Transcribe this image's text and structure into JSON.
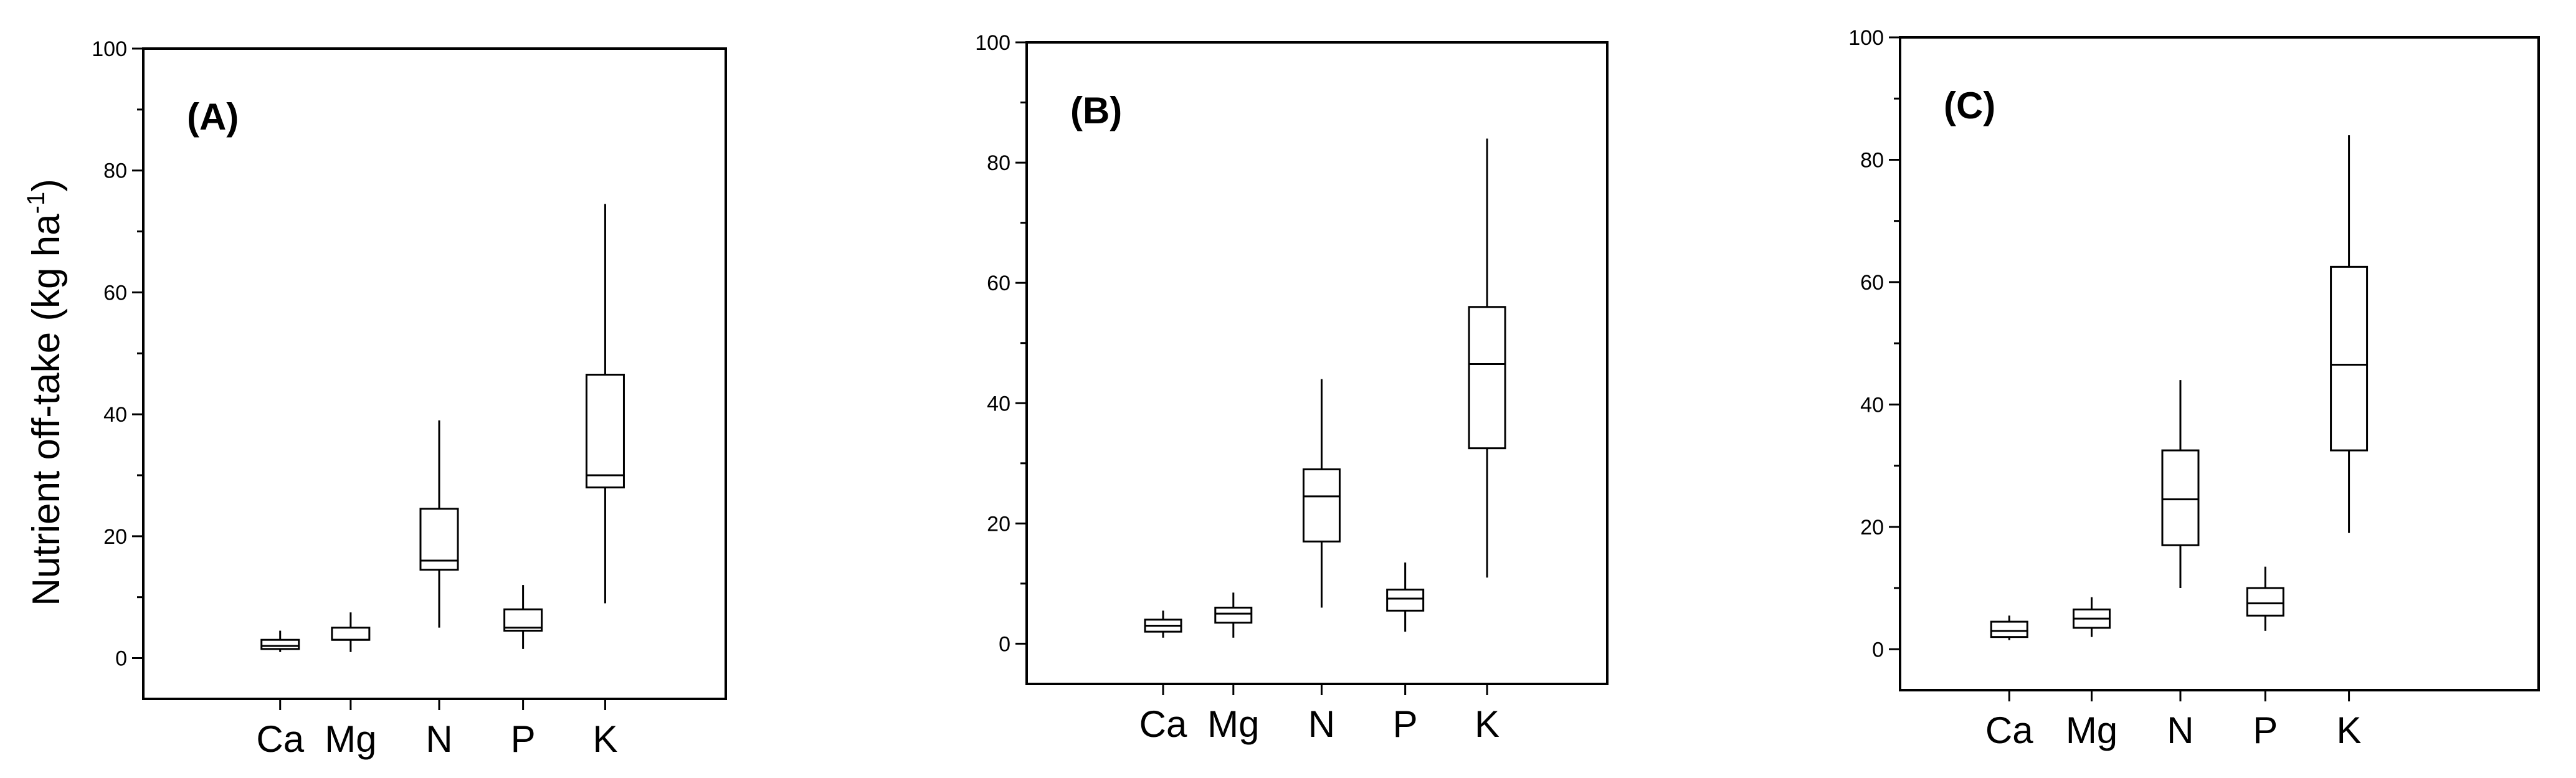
{
  "chart_data": [
    {
      "type": "box",
      "panel_label": "(A)",
      "ylabel": "Nutrient off-take (kg ha",
      "ylabel_sup": "-1",
      "ylabel_close": ")",
      "ylim": [
        0,
        100
      ],
      "yticks": [
        0,
        20,
        40,
        60,
        80,
        100
      ],
      "categories": [
        "Ca",
        "Mg",
        "N",
        "P",
        "K"
      ],
      "boxes": [
        {
          "category": "Ca",
          "min": 1,
          "q1": 1.5,
          "median": 2,
          "q3": 3,
          "max": 4.5
        },
        {
          "category": "Mg",
          "min": 1,
          "q1": 3,
          "median": 3,
          "q3": 5,
          "max": 7.5
        },
        {
          "category": "N",
          "min": 5,
          "q1": 14.5,
          "median": 16,
          "q3": 24.5,
          "max": 39
        },
        {
          "category": "P",
          "min": 1.5,
          "q1": 4.5,
          "median": 5,
          "q3": 8,
          "max": 12
        },
        {
          "category": "K",
          "min": 9,
          "q1": 28,
          "median": 30,
          "q3": 46.5,
          "max": 74.5
        }
      ]
    },
    {
      "type": "box",
      "panel_label": "(B)",
      "ylabel": "",
      "ylim": [
        0,
        100
      ],
      "yticks": [
        0,
        20,
        40,
        60,
        80,
        100
      ],
      "categories": [
        "Ca",
        "Mg",
        "N",
        "P",
        "K"
      ],
      "boxes": [
        {
          "category": "Ca",
          "min": 1,
          "q1": 2,
          "median": 3,
          "q3": 4,
          "max": 5.5
        },
        {
          "category": "Mg",
          "min": 1,
          "q1": 3.5,
          "median": 5,
          "q3": 6,
          "max": 8.5
        },
        {
          "category": "N",
          "min": 6,
          "q1": 17,
          "median": 24.5,
          "q3": 29,
          "max": 44
        },
        {
          "category": "P",
          "min": 2,
          "q1": 5.5,
          "median": 7.5,
          "q3": 9,
          "max": 13.5
        },
        {
          "category": "K",
          "min": 11,
          "q1": 32.5,
          "median": 46.5,
          "q3": 56,
          "max": 84
        }
      ]
    },
    {
      "type": "box",
      "panel_label": "(C)",
      "ylabel": "",
      "ylim": [
        0,
        100
      ],
      "yticks": [
        0,
        20,
        40,
        60,
        80,
        100
      ],
      "categories": [
        "Ca",
        "Mg",
        "N",
        "P",
        "K"
      ],
      "boxes": [
        {
          "category": "Ca",
          "min": 1.5,
          "q1": 2,
          "median": 3,
          "q3": 4.5,
          "max": 5.5
        },
        {
          "category": "Mg",
          "min": 2,
          "q1": 3.5,
          "median": 5,
          "q3": 6.5,
          "max": 8.5
        },
        {
          "category": "N",
          "min": 10,
          "q1": 17,
          "median": 24.5,
          "q3": 32.5,
          "max": 44
        },
        {
          "category": "P",
          "min": 3,
          "q1": 5.5,
          "median": 7.5,
          "q3": 10,
          "max": 13.5
        },
        {
          "category": "K",
          "min": 19,
          "q1": 32.5,
          "median": 46.5,
          "q3": 62.5,
          "max": 84
        }
      ]
    }
  ]
}
